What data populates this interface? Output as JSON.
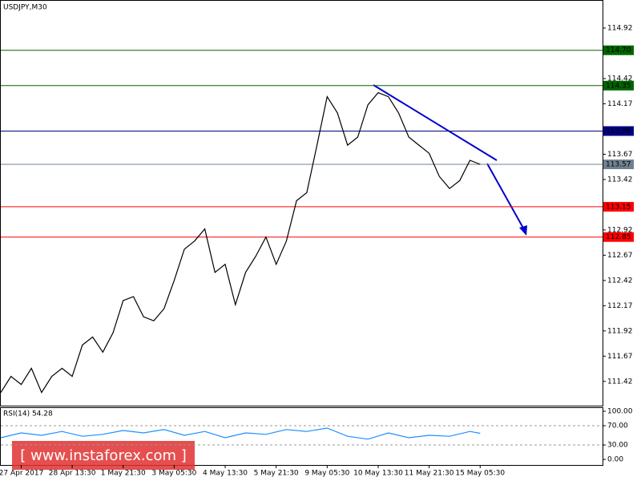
{
  "chart_data": [
    {
      "type": "line",
      "title": "USDJPY,M30",
      "x": [
        0,
        2,
        4,
        6,
        8,
        10,
        12,
        14,
        16,
        18,
        20,
        22,
        24,
        26,
        28,
        30,
        32,
        34,
        36,
        38,
        40,
        42,
        44,
        46,
        48,
        50,
        52,
        54,
        56,
        58,
        60,
        62,
        64,
        66,
        68,
        70,
        72,
        74,
        76,
        78,
        80,
        82,
        84,
        86,
        88,
        90,
        92,
        94
      ],
      "series": [
        {
          "color": "#000000",
          "values": [
            111.31,
            111.47,
            111.39,
            111.55,
            111.31,
            111.47,
            111.55,
            111.47,
            111.78,
            111.86,
            111.71,
            111.9,
            112.22,
            112.26,
            112.06,
            112.02,
            112.14,
            112.42,
            112.73,
            112.81,
            112.93,
            112.5,
            112.58,
            112.18,
            112.5,
            112.66,
            112.85,
            112.58,
            112.81,
            113.21,
            113.29,
            113.76,
            114.24,
            114.08,
            113.76,
            113.84,
            114.16,
            114.28,
            114.24,
            114.08,
            113.84,
            113.76,
            113.68,
            113.45,
            113.33,
            113.41,
            113.61,
            113.57
          ]
        }
      ],
      "xlim": [
        0,
        118
      ],
      "xticks": [
        {
          "value": 4,
          "label": "27 Apr 2017"
        },
        {
          "value": 14,
          "label": "28 Apr 13:30"
        },
        {
          "value": 24,
          "label": "1 May 21:30"
        },
        {
          "value": 34,
          "label": "3 May 05:30"
        },
        {
          "value": 44,
          "label": "4 May 13:30"
        },
        {
          "value": 54,
          "label": "5 May 21:30"
        },
        {
          "value": 64,
          "label": "9 May 05:30"
        },
        {
          "value": 74,
          "label": "10 May 13:30"
        },
        {
          "value": 84,
          "label": "11 May 21:30"
        },
        {
          "value": 94,
          "label": "15 May 05:30"
        }
      ],
      "ylim": [
        111.18,
        115.19
      ],
      "yticks": [
        111.42,
        111.67,
        111.92,
        112.17,
        112.42,
        112.67,
        112.92,
        113.42,
        113.67,
        114.17,
        114.42,
        114.92
      ],
      "levels": [
        {
          "value": 114.7,
          "label": "114.70",
          "color": "#006400"
        },
        {
          "value": 114.35,
          "label": "114.35",
          "color": "#006400"
        },
        {
          "value": 113.9,
          "label": "113.90",
          "color": "#000080"
        },
        {
          "value": 113.57,
          "label": "113.57",
          "color": "#708090"
        },
        {
          "value": 113.15,
          "label": "113.15",
          "color": "#ff0000"
        },
        {
          "value": 112.85,
          "label": "112.85",
          "color": "#ff0000"
        }
      ]
    },
    {
      "type": "line",
      "title": "RSI(14) 54.28",
      "x": [
        0,
        4,
        8,
        12,
        16,
        20,
        24,
        28,
        32,
        36,
        40,
        44,
        48,
        52,
        56,
        60,
        64,
        68,
        72,
        76,
        80,
        84,
        88,
        92,
        94
      ],
      "series": [
        {
          "color": "#1e90ff",
          "values": [
            45,
            55,
            50,
            58,
            48,
            52,
            60,
            55,
            62,
            50,
            58,
            45,
            55,
            52,
            62,
            58,
            65,
            48,
            42,
            55,
            45,
            50,
            48,
            58,
            54.28
          ]
        }
      ],
      "ylim": [
        -11.5,
        106.6
      ],
      "yticks": [
        {
          "value": 0,
          "label": "0.00"
        },
        {
          "value": 30,
          "label": "30.00"
        },
        {
          "value": 70,
          "label": "70.00"
        },
        {
          "value": 100,
          "label": "100.00"
        }
      ]
    }
  ],
  "watermark": "[ www.instaforex.com ]"
}
